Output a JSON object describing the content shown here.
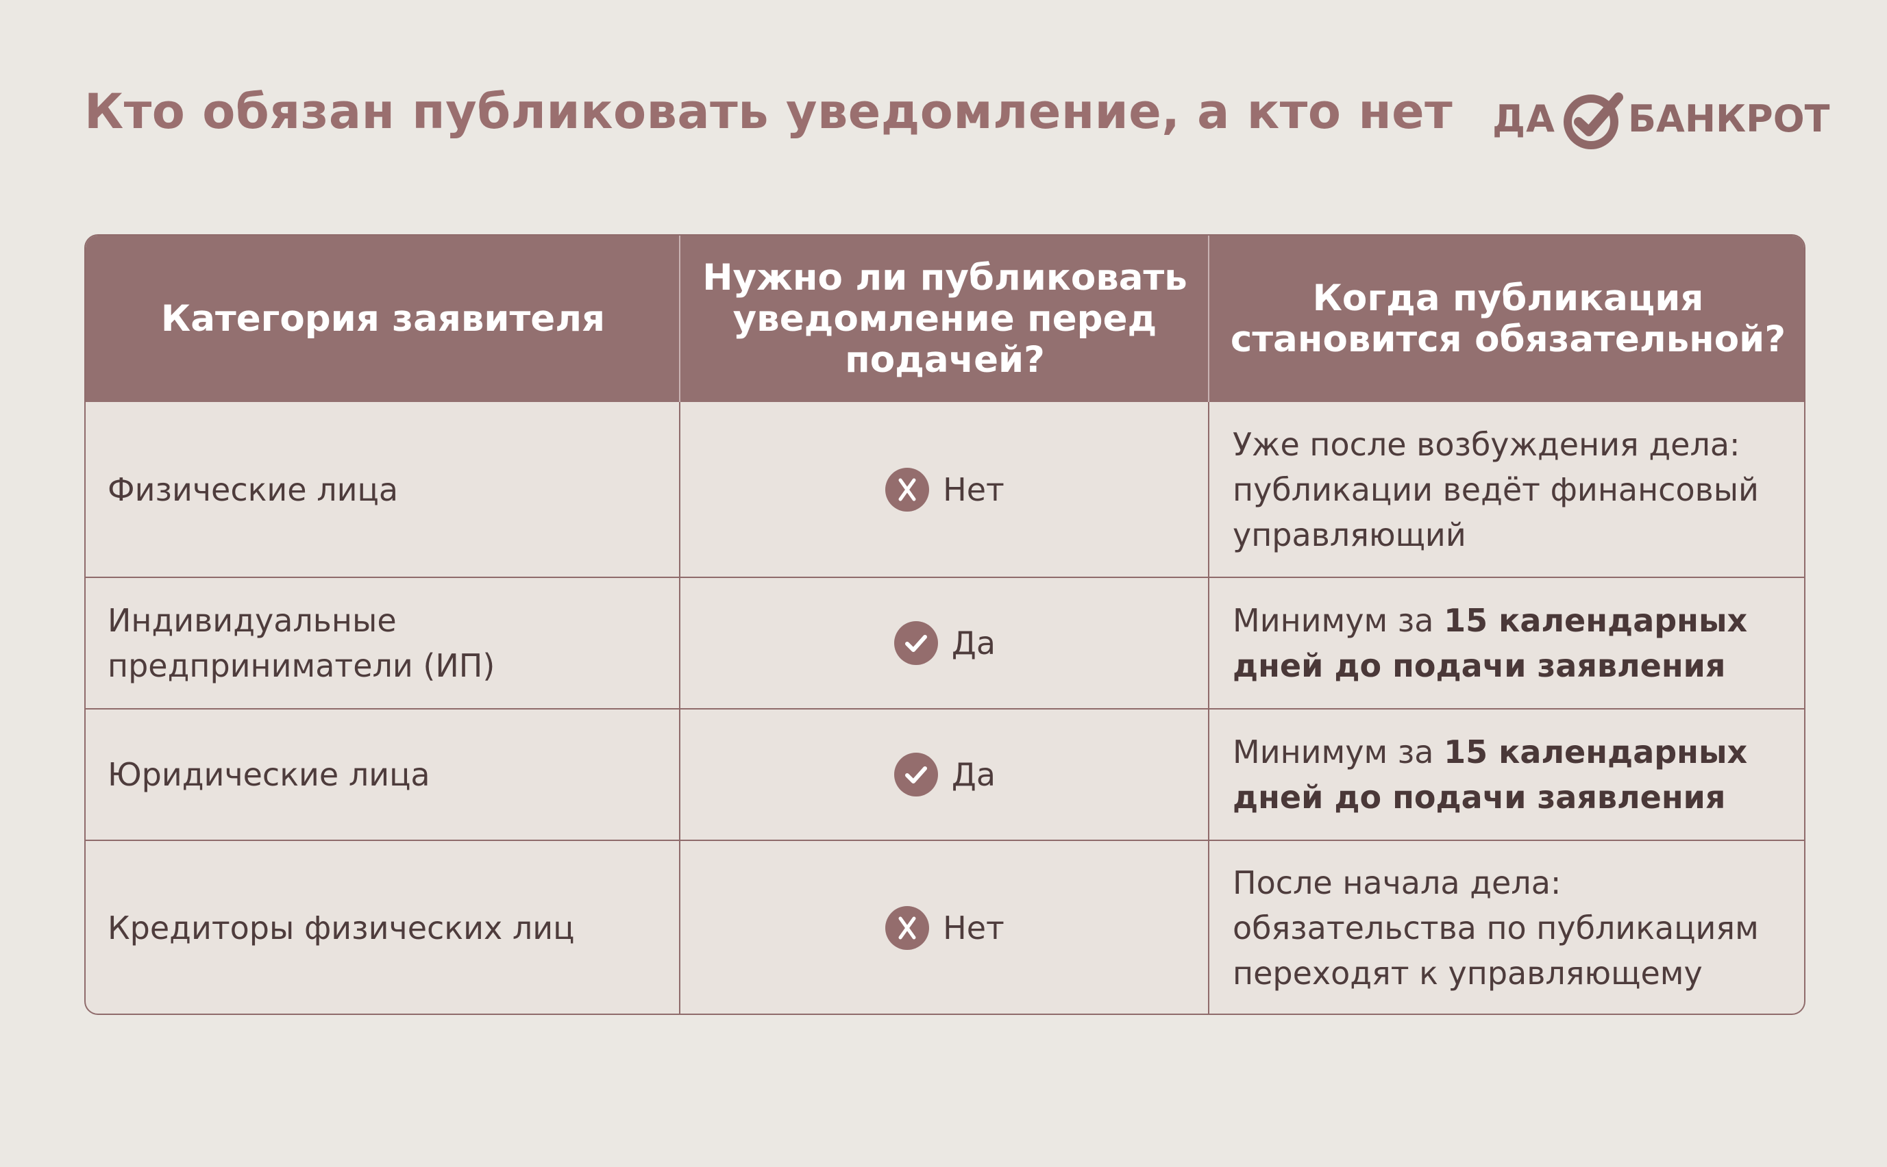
{
  "title": "Кто обязан публиковать уведомление, а кто нет",
  "logo": {
    "left_word": "ДА",
    "right_word": "БАНКРОТ",
    "mark_icon": "check-circle-logo-icon"
  },
  "table": {
    "headers": [
      "Категория заявителя",
      "Нужно ли публиковать уведомление перед подачей?",
      "Когда публикация становится обязательной?"
    ],
    "rows": [
      {
        "category": "Физические лица",
        "status_icon": "x-circle-icon",
        "status": "Нет",
        "when_prefix": "Уже после возбуждения дела: публикации ведёт финансовый управляющий",
        "when_bold": ""
      },
      {
        "category": "Индивидуальные предприниматели (ИП)",
        "status_icon": "check-circle-icon",
        "status": "Да",
        "when_prefix": "Минимум за ",
        "when_bold": "15 календарных дней до подачи заявления"
      },
      {
        "category": "Юридические лица",
        "status_icon": "check-circle-icon",
        "status": "Да",
        "when_prefix": "Минимум за ",
        "when_bold": "15 календарных дней до подачи заявления"
      },
      {
        "category": "Кредиторы физических лиц",
        "status_icon": "x-circle-icon",
        "status": "Нет",
        "when_prefix": "После начала дела: обязательства по публикациям переходят к управляющему",
        "when_bold": ""
      }
    ]
  },
  "colors": {
    "background": "#ebe8e3",
    "accent": "#937070",
    "title": "#9a6f6f",
    "text": "#4e3c3c"
  }
}
